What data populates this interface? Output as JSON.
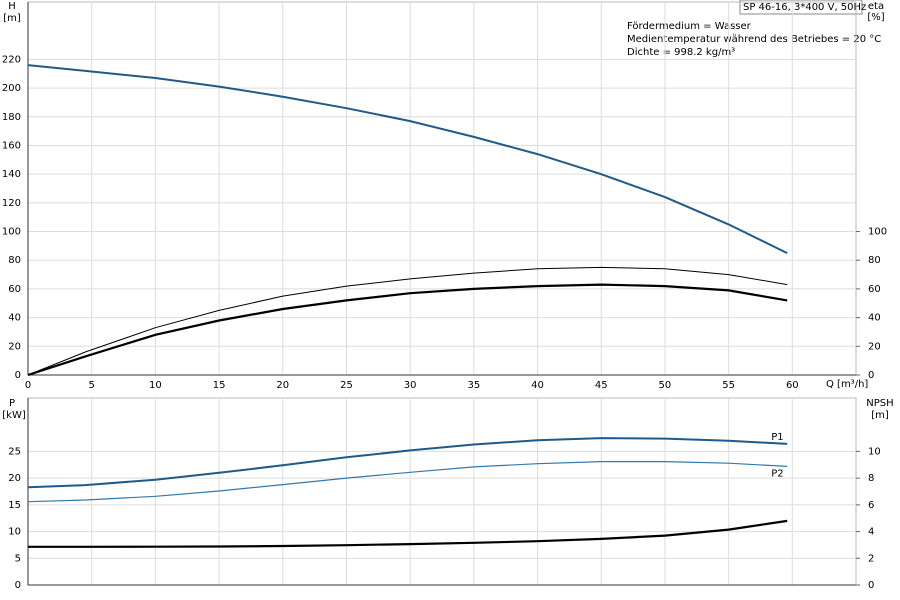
{
  "chart_data": [
    {
      "type": "line",
      "y_label": "H",
      "y_unit": "[m]",
      "y2_label": "eta",
      "y2_unit": "[%]",
      "x_label": "Q [m³/h]",
      "annotations": [
        "SP 46-16, 3*400 V, 50Hz",
        "Fördermedium = Wasser",
        "Medientemperatur während des Betriebes = 20 °C",
        "Dichte = 998.2 kg/m³"
      ],
      "x": [
        0,
        4.5,
        10,
        15,
        20,
        25,
        30,
        35,
        40,
        45,
        50,
        55,
        59.6
      ],
      "xlim": [
        0,
        65
      ],
      "xticks": [
        0,
        5,
        10,
        15,
        20,
        25,
        30,
        35,
        40,
        45,
        50,
        55,
        60
      ],
      "ylim": [
        0,
        260
      ],
      "yticks": [
        0,
        20,
        40,
        60,
        80,
        100,
        120,
        140,
        160,
        180,
        200,
        220
      ],
      "y2lim": [
        0,
        260
      ],
      "y2ticks": [
        0,
        20,
        40,
        60,
        80,
        100
      ],
      "grid": true,
      "series": [
        {
          "color": "#1f5a8a",
          "line_width": 2,
          "values": [
            216,
            212,
            207,
            201,
            194,
            186,
            177,
            166,
            154,
            140,
            124,
            105,
            85
          ]
        },
        {
          "color": "#000000",
          "line_width": 1,
          "axis": "y2",
          "values": [
            0,
            16,
            33,
            45,
            55,
            62,
            67,
            71,
            74,
            75,
            74,
            70,
            63
          ]
        },
        {
          "color": "#000000",
          "line_width": 2.2,
          "axis": "y2",
          "values": [
            0,
            13,
            28,
            38,
            46,
            52,
            57,
            60,
            62,
            63,
            62,
            59,
            52
          ]
        }
      ]
    },
    {
      "type": "line",
      "y_label": "P",
      "y_unit": "[kW]",
      "y2_label": "NPSH",
      "y2_unit": "[m]",
      "x": [
        0,
        4.5,
        10,
        15,
        20,
        25,
        30,
        35,
        40,
        45,
        50,
        55,
        59.6
      ],
      "xlim": [
        0,
        65
      ],
      "ylim": [
        0,
        35
      ],
      "yticks": [
        0,
        5,
        10,
        15,
        20,
        25
      ],
      "y2lim": [
        0,
        14
      ],
      "y2ticks": [
        0,
        2,
        4,
        6,
        8,
        10
      ],
      "grid": true,
      "series": [
        {
          "name": "P1",
          "color": "#1f5a8a",
          "line_width": 2,
          "values": [
            18.3,
            18.7,
            19.7,
            21,
            22.4,
            23.9,
            25.2,
            26.3,
            27.1,
            27.5,
            27.4,
            27,
            26.4
          ]
        },
        {
          "name": "P2",
          "color": "#2f7ab0",
          "line_width": 1.2,
          "values": [
            15.6,
            15.9,
            16.6,
            17.6,
            18.8,
            20,
            21.1,
            22.1,
            22.7,
            23.1,
            23.1,
            22.8,
            22.2
          ]
        },
        {
          "color": "#000000",
          "line_width": 2.2,
          "axis": "y2",
          "values": [
            2.86,
            2.86,
            2.87,
            2.88,
            2.92,
            2.98,
            3.06,
            3.16,
            3.28,
            3.45,
            3.7,
            4.15,
            4.8
          ]
        }
      ]
    }
  ]
}
